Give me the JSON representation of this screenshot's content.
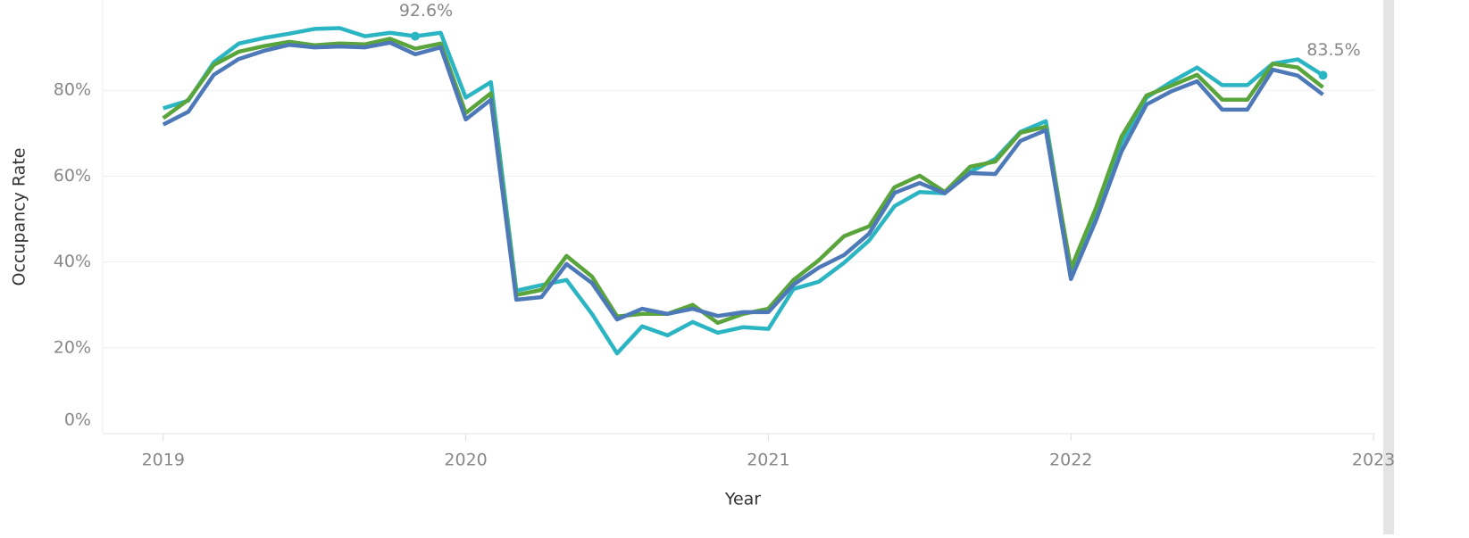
{
  "chart_data": {
    "type": "line",
    "xlabel": "Year",
    "ylabel": "Occupancy Rate",
    "x": [
      2019,
      2019.083,
      2019.167,
      2019.25,
      2019.333,
      2019.417,
      2019.5,
      2019.583,
      2019.667,
      2019.75,
      2019.833,
      2019.917,
      2020,
      2020.083,
      2020.167,
      2020.25,
      2020.333,
      2020.417,
      2020.5,
      2020.583,
      2020.667,
      2020.75,
      2020.833,
      2020.917,
      2021,
      2021.083,
      2021.167,
      2021.25,
      2021.333,
      2021.417,
      2021.5,
      2021.583,
      2021.667,
      2021.75,
      2021.833,
      2021.917,
      2022,
      2022.083,
      2022.167,
      2022.25,
      2022.333,
      2022.417,
      2022.5,
      2022.583,
      2022.667,
      2022.75,
      2022.833
    ],
    "series": [
      {
        "color": "#2bb5c3",
        "values": [
          75.8,
          77.6,
          86.5,
          90.9,
          92.2,
          93.2,
          94.3,
          94.5,
          92.6,
          93.4,
          92.6,
          93.4,
          78.3,
          81.9,
          33.3,
          34.6,
          35.8,
          27.9,
          18.7,
          25.0,
          22.9,
          26.0,
          23.5,
          24.8,
          24.4,
          33.7,
          35.4,
          39.8,
          45.0,
          53.0,
          56.3,
          56.0,
          61.0,
          64.0,
          70.3,
          72.8,
          37.1,
          51.1,
          67.8,
          78.3,
          82.0,
          85.3,
          81.2,
          81.2,
          86.2,
          87.2,
          83.5
        ],
        "value_labels": [
          null,
          null,
          null,
          null,
          null,
          null,
          null,
          null,
          null,
          null,
          "92.6%",
          null,
          null,
          null,
          null,
          null,
          null,
          null,
          null,
          null,
          null,
          null,
          null,
          null,
          null,
          null,
          null,
          null,
          null,
          null,
          null,
          null,
          null,
          null,
          null,
          null,
          null,
          null,
          null,
          null,
          null,
          null,
          null,
          null,
          null,
          null,
          "83.5%"
        ]
      },
      {
        "color": "#5aa43c",
        "values": [
          73.5,
          77.8,
          85.9,
          89.0,
          90.3,
          91.3,
          90.5,
          90.9,
          90.7,
          92.0,
          89.7,
          90.9,
          74.7,
          79.3,
          32.3,
          33.5,
          41.4,
          36.6,
          27.3,
          27.9,
          27.9,
          30.0,
          25.8,
          27.9,
          29.1,
          35.8,
          40.4,
          46.0,
          48.3,
          57.4,
          60.1,
          56.3,
          62.2,
          63.4,
          70.1,
          71.5,
          38.5,
          52.6,
          69.2,
          78.8,
          81.1,
          83.6,
          77.8,
          77.8,
          86.2,
          85.3,
          80.7
        ]
      },
      {
        "color": "#4e79b8",
        "values": [
          72.0,
          75.0,
          83.6,
          87.3,
          89.2,
          90.6,
          90.0,
          90.2,
          90.0,
          91.1,
          88.4,
          90.0,
          73.2,
          77.8,
          31.2,
          31.8,
          39.5,
          35.1,
          26.6,
          29.1,
          27.9,
          29.1,
          27.4,
          28.3,
          28.3,
          34.7,
          38.7,
          41.6,
          46.6,
          56.1,
          58.4,
          56.0,
          60.7,
          60.5,
          68.2,
          70.7,
          36.0,
          49.7,
          65.7,
          76.7,
          79.8,
          82.1,
          75.5,
          75.5,
          84.8,
          83.4,
          79.0
        ]
      }
    ],
    "xlim": [
      2018.8,
      2023.05
    ],
    "xticks": [
      2019,
      2020,
      2021,
      2022,
      2023
    ],
    "ylim": [
      0,
      100
    ],
    "yticks": [
      {
        "value": 0,
        "label": "0%"
      },
      {
        "value": 20,
        "label": "20%"
      },
      {
        "value": 40,
        "label": "40%"
      },
      {
        "value": 60,
        "label": "60%"
      },
      {
        "value": 80,
        "label": "80%"
      }
    ],
    "grid": true
  }
}
